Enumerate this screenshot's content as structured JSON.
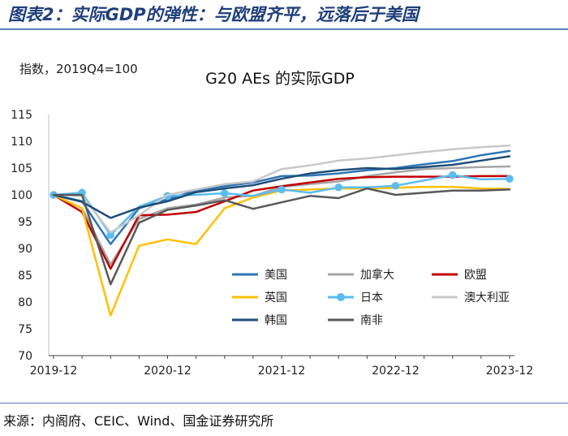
{
  "figure_title": "图表2：实际GDP的弹性：与欧盟齐平，远落后于美国",
  "source": "来源：内阁府、CEIC、Wind、国金证券研究所",
  "chart_data": {
    "type": "line",
    "title": "G20 AEs 的实际GDP",
    "ylabel": "指数，2019Q4=100",
    "xlabel": "",
    "ylim": [
      70,
      115
    ],
    "yticks": [
      70,
      75,
      80,
      85,
      90,
      95,
      100,
      105,
      110,
      115
    ],
    "x_count": 17,
    "x_tick_labels": [
      {
        "index": 0,
        "label": "2019-12"
      },
      {
        "index": 4,
        "label": "2020-12"
      },
      {
        "index": 8,
        "label": "2021-12"
      },
      {
        "index": 12,
        "label": "2022-12"
      },
      {
        "index": 16,
        "label": "2023-12"
      }
    ],
    "grid": false,
    "series": [
      {
        "name": "美国",
        "color": "#2e75b6",
        "marker": false,
        "values": [
          100,
          98.8,
          90.8,
          97.5,
          99.2,
          100.8,
          101.6,
          102.3,
          103.5,
          103.6,
          104.0,
          104.6,
          105.0,
          105.7,
          106.3,
          107.4,
          108.2
        ]
      },
      {
        "name": "加拿大",
        "color": "#a6a6a6",
        "marker": false,
        "values": [
          100,
          97.5,
          87.0,
          95.5,
          97.5,
          98.2,
          99.5,
          99.8,
          101.5,
          102.0,
          102.5,
          103.5,
          104.2,
          104.8,
          105.0,
          105.2,
          105.3
        ]
      },
      {
        "name": "欧盟",
        "color": "#c00000",
        "marker": false,
        "values": [
          100,
          96.8,
          86.2,
          96.2,
          96.3,
          96.8,
          98.8,
          100.8,
          101.6,
          102.3,
          103.0,
          103.3,
          103.4,
          103.4,
          103.4,
          103.5,
          103.5
        ]
      },
      {
        "name": "英国",
        "color": "#ffc000",
        "marker": false,
        "values": [
          100,
          97.5,
          77.5,
          90.5,
          91.7,
          90.8,
          97.5,
          99.5,
          100.8,
          101.0,
          101.2,
          101.2,
          101.3,
          101.5,
          101.5,
          101.2,
          101.1
        ]
      },
      {
        "name": "日本",
        "color": "#5bbcf2",
        "marker": true,
        "values": [
          100,
          100.4,
          92.5,
          97.8,
          99.8,
          100.0,
          100.3,
          99.8,
          101.0,
          100.4,
          101.4,
          101.4,
          101.7,
          102.7,
          103.7,
          102.9,
          103.0
        ]
      },
      {
        "name": "澳大利亚",
        "color": "#c8c8c8",
        "marker": false,
        "values": [
          100,
          99.8,
          93.0,
          96.2,
          100.0,
          101.0,
          102.0,
          102.5,
          104.8,
          105.5,
          106.4,
          106.8,
          107.4,
          108.0,
          108.5,
          108.9,
          109.2
        ]
      },
      {
        "name": "韩国",
        "color": "#1f4e79",
        "marker": false,
        "values": [
          100,
          98.7,
          95.7,
          97.6,
          98.8,
          100.5,
          101.2,
          101.8,
          103.0,
          104.0,
          104.6,
          105.0,
          104.8,
          105.2,
          105.6,
          106.4,
          107.2
        ]
      },
      {
        "name": "南非",
        "color": "#595959",
        "marker": false,
        "values": [
          100,
          100.0,
          83.3,
          94.8,
          97.2,
          98.0,
          99.0,
          97.4,
          98.6,
          99.8,
          99.4,
          101.2,
          100.0,
          100.4,
          100.8,
          100.8,
          101.0
        ]
      }
    ],
    "legend_columns": 3
  }
}
